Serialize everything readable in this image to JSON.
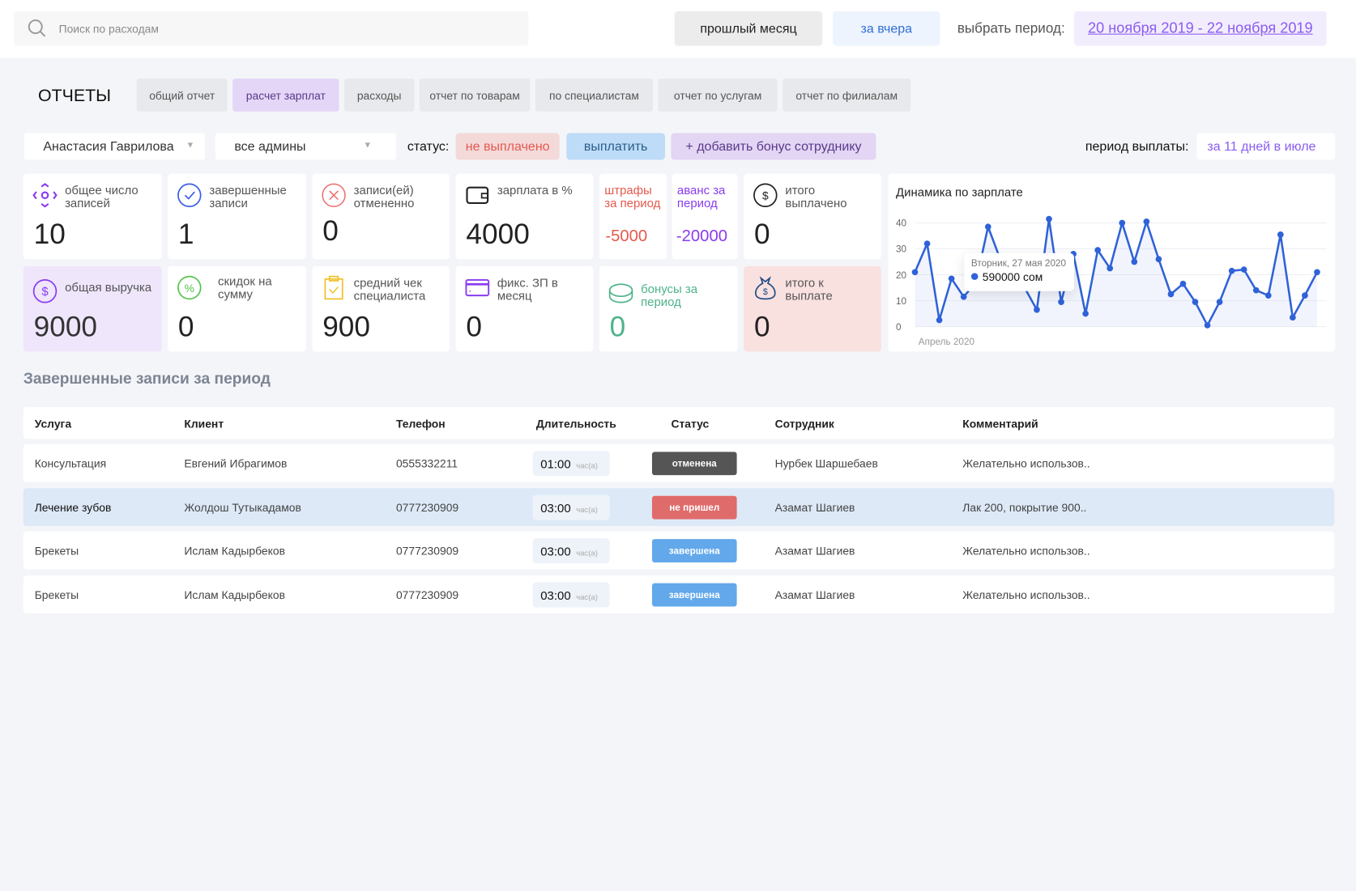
{
  "search": {
    "placeholder": "Поиск по расходам",
    "icon": "search-icon"
  },
  "header": {
    "last_month": "прошлый месяц",
    "yesterday": "за вчера",
    "choose_period_label": "выбрать период:",
    "period": "20 ноября 2019 - 22 ноября 2019"
  },
  "reports": {
    "title": "ОТЧЕТЫ",
    "tabs": [
      {
        "label": "общий отчет"
      },
      {
        "label": "расчет зарплат",
        "active": true
      },
      {
        "label": "расходы"
      },
      {
        "label": "отчет по товарам"
      },
      {
        "label": "по специалистам"
      },
      {
        "label": "отчет по услугам"
      },
      {
        "label": "отчет по филиалам"
      }
    ]
  },
  "filters": {
    "employee": "Анастасия Гаврилова",
    "admins": "все админы",
    "status_label": "статус:",
    "status_value": "не выплачено",
    "pay_button": "выплатить",
    "add_bonus_button": "+ добавить бонус сотруднику",
    "pay_period_label": "период выплаты:",
    "pay_period_value": "за 11 дней в июле"
  },
  "stats": {
    "total_records": {
      "label": "общее число записей",
      "value": "10"
    },
    "completed": {
      "label": "завершенные записи",
      "value": "1"
    },
    "cancelled": {
      "label": "записи(ей) отмененно",
      "value": "0"
    },
    "salary_percent": {
      "label": "зарплата в %",
      "value": "4000"
    },
    "fines": {
      "label": "штрафы за период",
      "value": "-5000"
    },
    "advance": {
      "label": "аванс за период",
      "value": "-20000"
    },
    "total_paid": {
      "label": "итого выплачено",
      "value": "0"
    },
    "revenue": {
      "label": "общая выручка",
      "value": "9000"
    },
    "discounts": {
      "label": "скидок на сумму",
      "value": "0"
    },
    "avg_check": {
      "label": "средний чек специалиста",
      "value": "900"
    },
    "fixed_salary": {
      "label": "фикс. ЗП в месяц",
      "value": "0"
    },
    "bonuses": {
      "label": "бонусы за период",
      "value": "0"
    },
    "to_pay": {
      "label": "итого к выплате",
      "value": "0"
    }
  },
  "colors": {
    "accent_purple": "#8a5cf0",
    "red": "#e45a4f",
    "blue": "#2f62d8",
    "green": "#4db38a"
  },
  "chart_data": {
    "type": "line",
    "title": "Динамика по зарплате",
    "xlabel": "Апрель 2020",
    "ylim": [
      0,
      40
    ],
    "yticks": [
      "0",
      "10",
      "20",
      "30",
      "40"
    ],
    "values": [
      21,
      32,
      2.5,
      18.5,
      11.5,
      17,
      38.5,
      26,
      20,
      15,
      6.5,
      41.5,
      9.5,
      28,
      5,
      29.5,
      22.5,
      40,
      25,
      40.5,
      26,
      12.5,
      16.5,
      9.5,
      0.5,
      9.5,
      21.5,
      22,
      14,
      12,
      35.5,
      3.5,
      12,
      21
    ],
    "tooltip": {
      "date": "Вторник, 27 мая 2020",
      "value": "590000 сом"
    },
    "grid": true,
    "area_fill": true
  },
  "table": {
    "title": "Завершенные записи за период",
    "columns": [
      "Услуга",
      "Клиент",
      "Телефон",
      "Длительность",
      "Статус",
      "Сотрудник",
      "Комментарий"
    ],
    "unit": "час(а)",
    "rows": [
      {
        "service": "Консультация",
        "client": "Евгений Ибрагимов",
        "phone": "0555332211",
        "duration": "01:00",
        "status": "отменена",
        "status_color": "#555555",
        "employee": "Нурбек Шаршебаев",
        "comment": "Желательно использов.."
      },
      {
        "service": "Лечение зубов",
        "client": "Жолдош Тутыкадамов",
        "phone": "0777230909",
        "duration": "03:00",
        "status": "не пришел",
        "status_color": "#e06b6b",
        "employee": "Азамат Шагиев",
        "comment": "Лак 200, покрытие 900..",
        "highlighted": true
      },
      {
        "service": "Брекеты",
        "client": "Ислам Кадырбеков",
        "phone": "0777230909",
        "duration": "03:00",
        "status": "завершена",
        "status_color": "#62a8ea",
        "employee": "Азамат Шагиев",
        "comment": "Желательно использов.."
      },
      {
        "service": "Брекеты",
        "client": "Ислам Кадырбеков",
        "phone": "0777230909",
        "duration": "03:00",
        "status": "завершена",
        "status_color": "#62a8ea",
        "employee": "Азамат Шагиев",
        "comment": "Желательно использов.."
      }
    ]
  }
}
